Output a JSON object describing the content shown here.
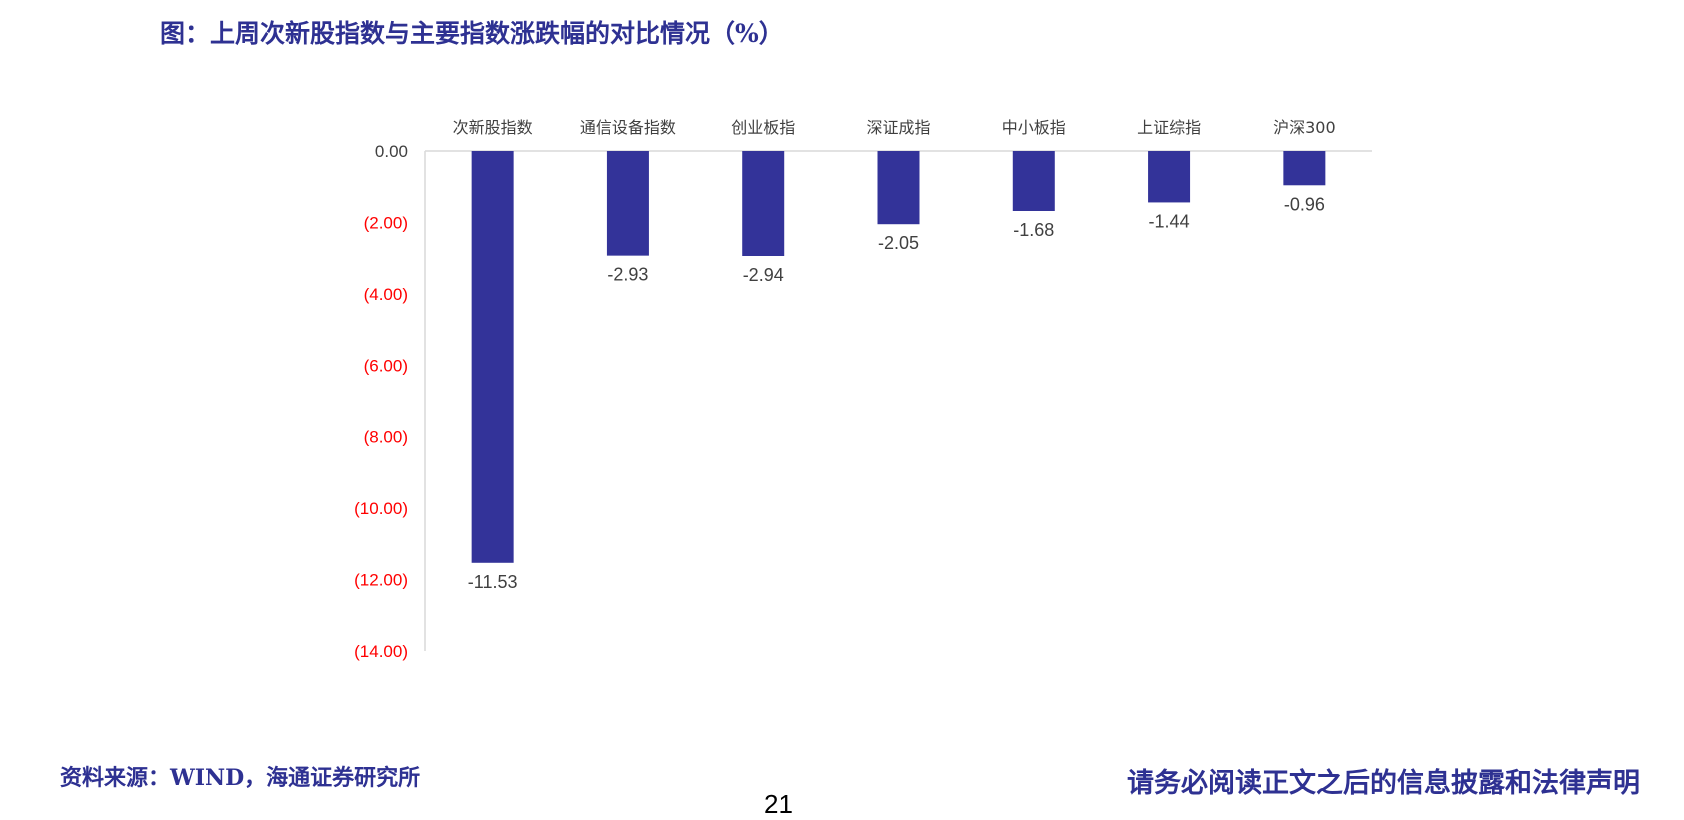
{
  "title": "图：上周次新股指数与主要指数涨跌幅的对比情况（%）",
  "footer": {
    "source": "资料来源：WIND，海通证券研究所",
    "disclaimer": "请务必阅读正文之后的信息披露和法律声明",
    "page_number": "21"
  },
  "colors": {
    "bar": "#333399",
    "negative_tick": "#ff0000",
    "zero_tick": "#404040",
    "axis": "#d9d9d9",
    "title": "#2e3192"
  },
  "chart_data": {
    "type": "bar",
    "title": "图：上周次新股指数与主要指数涨跌幅的对比情况（%）",
    "categories": [
      "次新股指数",
      "通信设备指数",
      "创业板指",
      "深证成指",
      "中小板指",
      "上证综指",
      "沪深300"
    ],
    "values": [
      -11.53,
      -2.93,
      -2.94,
      -2.05,
      -1.68,
      -1.44,
      -0.96
    ],
    "data_labels": [
      "-11.53",
      "-2.93",
      "-2.94",
      "-2.05",
      "-1.68",
      "-1.44",
      "-0.96"
    ],
    "ylim": [
      -14,
      0
    ],
    "yticks": [
      0,
      -2,
      -4,
      -6,
      -8,
      -10,
      -12,
      -14
    ],
    "ytick_labels": [
      "0.00",
      "(2.00)",
      "(4.00)",
      "(6.00)",
      "(8.00)",
      "(10.00)",
      "(12.00)",
      "(14.00)"
    ],
    "category_axis_position": "top",
    "grid": false,
    "legend": "none",
    "xlabel": "",
    "ylabel": ""
  }
}
